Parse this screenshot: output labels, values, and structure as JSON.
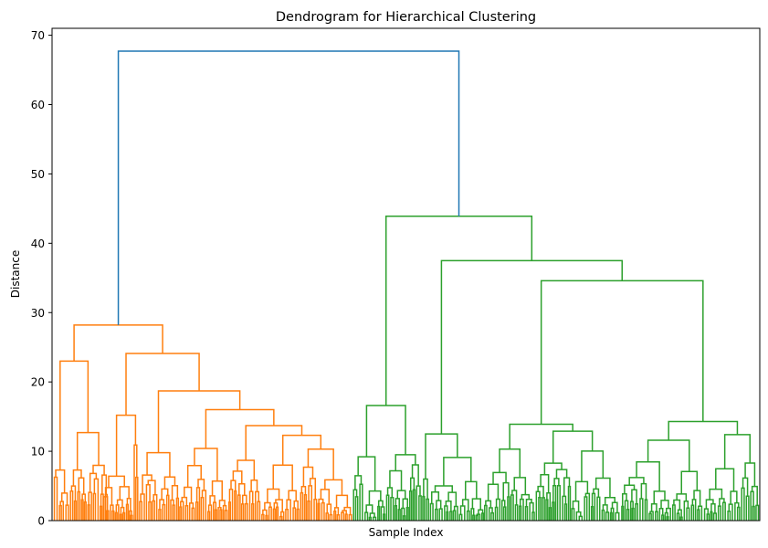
{
  "chart_data": {
    "type": "dendrogram",
    "title": "Dendrogram for Hierarchical Clustering",
    "xlabel": "Sample Index",
    "ylabel": "Distance",
    "ylim": [
      0,
      71
    ],
    "yticks": [
      0,
      10,
      20,
      30,
      40,
      50,
      60,
      70
    ],
    "x_tick_labels_visible": false,
    "link_color_above_threshold": "#1f77b4",
    "cluster_colors": [
      "#ff7f0e",
      "#2ca02c"
    ],
    "series": [
      {
        "cluster": 1,
        "color": "#ff7f0e",
        "root_height": 28.2,
        "merge_heights_approx": [
          28.2,
          24.1,
          23.0,
          18.7,
          16.0,
          15.2,
          13.7,
          12.7,
          12.3,
          10.9,
          10.4,
          10.3,
          9.8,
          9.1,
          8.7,
          7.8,
          7.3,
          6.6,
          6.2,
          5.4,
          5.0,
          4.6,
          4.2,
          3.8,
          3.4,
          3.0
        ]
      },
      {
        "cluster": 2,
        "color": "#2ca02c",
        "root_height": 43.9,
        "merge_heights_approx": [
          43.9,
          37.5,
          34.6,
          16.6,
          14.3,
          13.9,
          12.9,
          12.5,
          12.4,
          11.6,
          10.9,
          10.3,
          10.2,
          9.5,
          9.2,
          9.0,
          8.1,
          7.8,
          7.3,
          7.0,
          6.4,
          6.0,
          5.4,
          5.0,
          4.4,
          3.8,
          3.3,
          2.8
        ]
      }
    ],
    "top_merge": {
      "height": 67.7,
      "color": "#1f77b4"
    }
  }
}
